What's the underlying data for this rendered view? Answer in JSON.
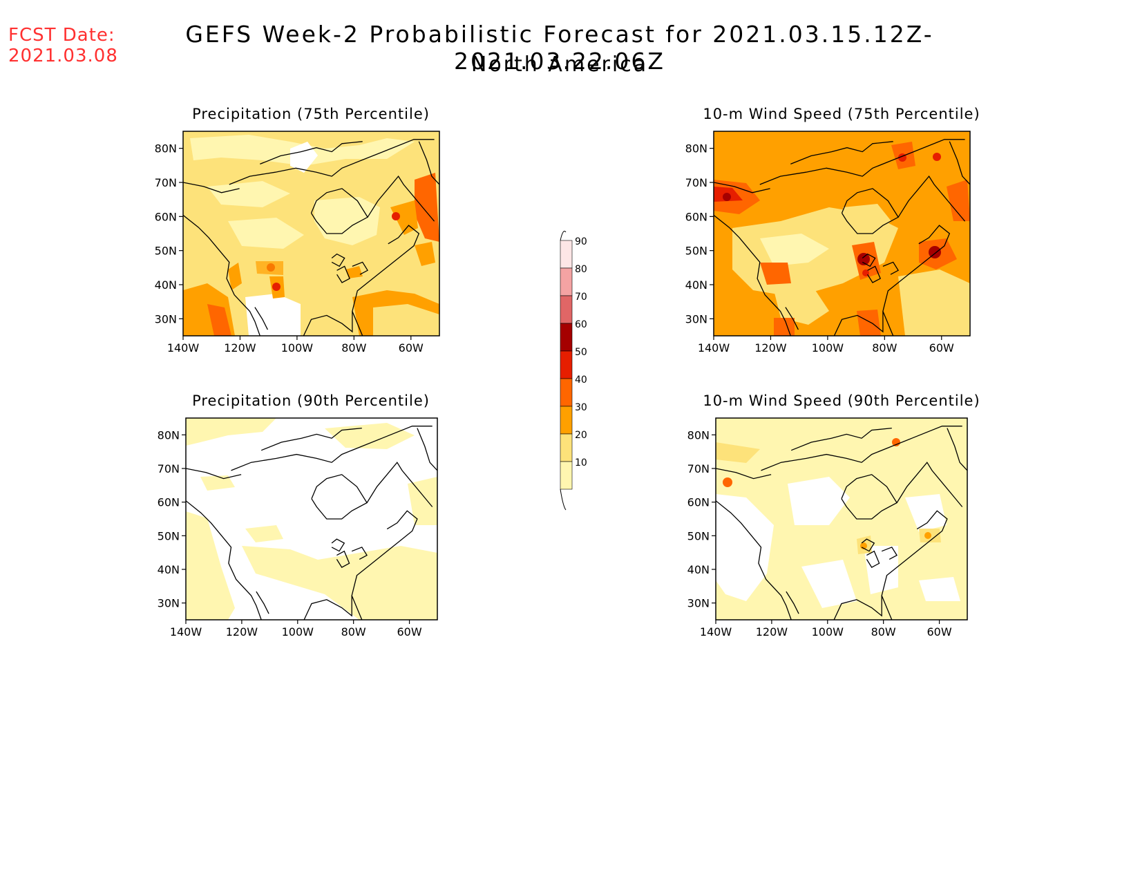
{
  "forecast_date": {
    "label": "FCST Date:",
    "value": "2021.03.08"
  },
  "title": "GEFS Week-2 Probabilistic Forecast for 2021.03.15.12Z-2021.03.22.06Z",
  "region": "North America",
  "panels": [
    {
      "title": "Precipitation (75th Percentile)",
      "x_ticks": [
        "140W",
        "120W",
        "100W",
        "80W",
        "60W"
      ],
      "y_ticks": [
        "80N",
        "70N",
        "60N",
        "50N",
        "40N",
        "30N"
      ],
      "shading": "mostly 10-30%, local 30-50% near west coast, Mexico, SE US and Labrador"
    },
    {
      "title": "10-m Wind Speed (75th Percentile)",
      "x_ticks": [
        "140W",
        "120W",
        "100W",
        "80W",
        "60W"
      ],
      "y_ticks": [
        "80N",
        "70N",
        "60N",
        "50N",
        "40N",
        "30N"
      ],
      "shading": "mostly 20-40%, local 40-70% over Great Lakes, Gulf of St. Lawrence, Arctic"
    },
    {
      "title": "Precipitation (90th Percentile)",
      "x_ticks": [
        "140W",
        "120W",
        "100W",
        "80W",
        "60W"
      ],
      "y_ticks": [
        "80N",
        "70N",
        "60N",
        "50N",
        "40N",
        "30N"
      ],
      "shading": "mostly below 10%, patchy 10-20%"
    },
    {
      "title": "10-m Wind Speed (90th Percentile)",
      "x_ticks": [
        "140W",
        "120W",
        "100W",
        "80W",
        "60W"
      ],
      "y_ticks": [
        "80N",
        "70N",
        "60N",
        "50N",
        "40N",
        "30N"
      ],
      "shading": "mostly 10-20%, local 30-50% over Great Lakes and Arctic"
    }
  ],
  "colorbar": {
    "labels": [
      "90",
      "80",
      "70",
      "60",
      "50",
      "40",
      "30",
      "20",
      "10"
    ],
    "colors": [
      "#fde6e6",
      "#f4a3a3",
      "#e06666",
      "#a50000",
      "#e61e00",
      "#ff6600",
      "#ffa000",
      "#fde27a",
      "#fff6b0"
    ]
  },
  "shade_colors": {
    "c10": "#fff6b0",
    "c20": "#fde27a",
    "c30": "#ffa000",
    "c40": "#ff6600",
    "c50": "#e61e00",
    "c60": "#a50000"
  }
}
